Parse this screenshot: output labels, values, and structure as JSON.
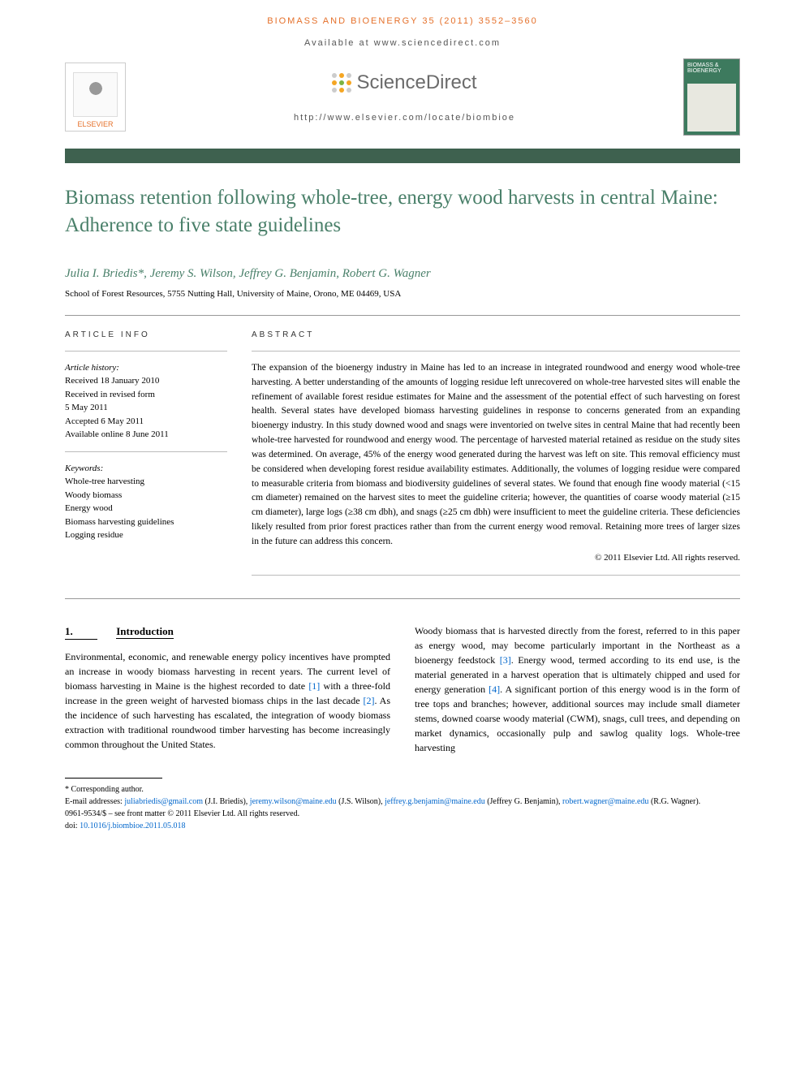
{
  "header": {
    "running_head": "BIOMASS AND BIOENERGY 35 (2011) 3552–3560",
    "available_at": "Available at www.sciencedirect.com",
    "journal_home": "http://www.elsevier.com/locate/biombioe",
    "publisher_name": "ELSEVIER",
    "sd_brand": "ScienceDirect",
    "journal_cover_title": "BIOMASS & BIOENERGY"
  },
  "colors": {
    "accent_orange": "#e5702a",
    "title_green": "#4a806a",
    "ruler_green": "#3e614f",
    "cover_green": "#3d7a5e",
    "link_blue": "#0066cc",
    "sd_dot_orange": "#f5a623",
    "sd_dot_green": "#7cb342",
    "sd_dot_gray": "#cccccc"
  },
  "article": {
    "title": "Biomass retention following whole-tree, energy wood harvests in central Maine: Adherence to five state guidelines",
    "authors_line": "Julia I. Briedis*, Jeremy S. Wilson, Jeffrey G. Benjamin, Robert G. Wagner",
    "affiliation": "School of Forest Resources, 5755 Nutting Hall, University of Maine, Orono, ME 04469, USA"
  },
  "article_info": {
    "heading": "ARTICLE INFO",
    "history_label": "Article history:",
    "received": "Received 18 January 2010",
    "revised_label": "Received in revised form",
    "revised_date": "5 May 2011",
    "accepted": "Accepted 6 May 2011",
    "online": "Available online 8 June 2011",
    "keywords_label": "Keywords:",
    "keywords": [
      "Whole-tree harvesting",
      "Woody biomass",
      "Energy wood",
      "Biomass harvesting guidelines",
      "Logging residue"
    ]
  },
  "abstract": {
    "heading": "ABSTRACT",
    "text": "The expansion of the bioenergy industry in Maine has led to an increase in integrated roundwood and energy wood whole-tree harvesting. A better understanding of the amounts of logging residue left unrecovered on whole-tree harvested sites will enable the refinement of available forest residue estimates for Maine and the assessment of the potential effect of such harvesting on forest health. Several states have developed biomass harvesting guidelines in response to concerns generated from an expanding bioenergy industry. In this study downed wood and snags were inventoried on twelve sites in central Maine that had recently been whole-tree harvested for roundwood and energy wood. The percentage of harvested material retained as residue on the study sites was determined. On average, 45% of the energy wood generated during the harvest was left on site. This removal efficiency must be considered when developing forest residue availability estimates. Additionally, the volumes of logging residue were compared to measurable criteria from biomass and biodiversity guidelines of several states. We found that enough fine woody material (<15 cm diameter) remained on the harvest sites to meet the guideline criteria; however, the quantities of coarse woody material (≥15 cm diameter), large logs (≥38 cm dbh), and snags (≥25 cm dbh) were insufficient to meet the guideline criteria. These deficiencies likely resulted from prior forest practices rather than from the current energy wood removal. Retaining more trees of larger sizes in the future can address this concern.",
    "copyright": "© 2011 Elsevier Ltd. All rights reserved."
  },
  "sections": {
    "intro_num": "1.",
    "intro_label": "Introduction",
    "intro_col1": "Environmental, economic, and renewable energy policy incentives have prompted an increase in woody biomass harvesting in recent years. The current level of biomass harvesting in Maine is the highest recorded to date [1] with a three-fold increase in the green weight of harvested biomass chips in the last decade [2]. As the incidence of such harvesting has escalated, the integration of woody biomass extraction with traditional roundwood timber harvesting has become increasingly common throughout the United States.",
    "intro_col2": "Woody biomass that is harvested directly from the forest, referred to in this paper as energy wood, may become particularly important in the Northeast as a bioenergy feedstock [3]. Energy wood, termed according to its end use, is the material generated in a harvest operation that is ultimately chipped and used for energy generation [4]. A significant portion of this energy wood is in the form of tree tops and branches; however, additional sources may include small diameter stems, downed coarse woody material (CWM), snags, cull trees, and depending on market dynamics, occasionally pulp and sawlog quality logs. Whole-tree harvesting"
  },
  "refs": {
    "r1": "[1]",
    "r2": "[2]",
    "r3": "[3]",
    "r4": "[4]"
  },
  "footnotes": {
    "corresponding": "* Corresponding author.",
    "email_label": "E-mail addresses: ",
    "email1": "juliabriedis@gmail.com",
    "name1": " (J.I. Briedis), ",
    "email2": "jeremy.wilson@maine.edu",
    "name2": " (J.S. Wilson), ",
    "email3": "jeffrey.g.benjamin@maine.edu",
    "name3": " (Jeffrey G. Benjamin), ",
    "email4": "robert.wagner@maine.edu",
    "name4": " (R.G. Wagner).",
    "issn_line": "0961-9534/$ – see front matter © 2011 Elsevier Ltd. All rights reserved.",
    "doi_label": "doi:",
    "doi": "10.1016/j.biombioe.2011.05.018"
  }
}
